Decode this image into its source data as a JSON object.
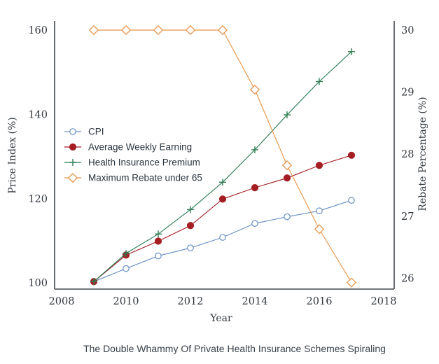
{
  "chart_data": {
    "type": "line",
    "caption": "The Double Whammy Of Private Health Insurance Schemes Spiraling",
    "xlabel": "Year",
    "ylabel_left": "Price Index (%)",
    "ylabel_right": "Rebate Percentage (%)",
    "x_ticks": [
      2008,
      2010,
      2012,
      2014,
      2016,
      2018
    ],
    "y_left_ticks": [
      100,
      120,
      140,
      160
    ],
    "y_right_ticks": [
      26,
      27,
      28,
      29,
      30
    ],
    "x_range": [
      2007.8,
      2018.3
    ],
    "y_left_range": [
      98.5,
      162
    ],
    "y_right_range": [
      25.85,
      30.15
    ],
    "grid": "off",
    "legend_position": "upper-left-inside",
    "years": [
      2009,
      2010,
      2011,
      2012,
      2013,
      2014,
      2015,
      2016,
      2017
    ],
    "series": [
      {
        "name": "CPI",
        "axis": "left",
        "marker": "circle-open",
        "color": "#6690c4",
        "values": [
          100.3,
          103.4,
          106.4,
          108.3,
          110.8,
          114.1,
          115.7,
          117.1,
          119.6
        ]
      },
      {
        "name": "Average Weekly Earning",
        "axis": "left",
        "marker": "circle-filled",
        "color": "#a41e24",
        "values": [
          100.3,
          106.6,
          109.9,
          113.6,
          119.9,
          122.6,
          124.9,
          127.9,
          130.3
        ]
      },
      {
        "name": "Health Insurance Premium",
        "axis": "left",
        "marker": "plus",
        "color": "#2e7d54",
        "values": [
          100.3,
          107.0,
          111.6,
          117.4,
          123.9,
          131.6,
          139.9,
          147.8,
          154.9
        ]
      },
      {
        "name": "Maximum Rebate under 65",
        "axis": "right",
        "marker": "diamond-open",
        "color": "#e8954a",
        "values": [
          30,
          30,
          30,
          30,
          30,
          29.04,
          27.82,
          26.79,
          25.93
        ]
      }
    ]
  },
  "colors": {
    "background": "#ffffff",
    "spine": "#43484e",
    "axis_text": "#32383f",
    "legend_text": "#2b3540",
    "caption_text": "#39424b"
  }
}
